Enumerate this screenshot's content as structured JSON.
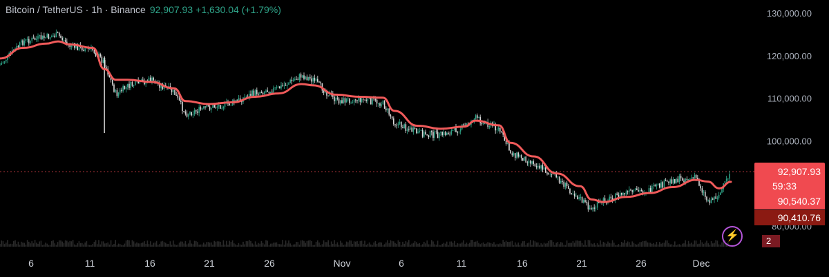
{
  "header": {
    "symbol": "Bitcoin / TetherUS · 1h · Binance",
    "last_price": "92,907.93",
    "change": "+1,630.04 (+1.79%)"
  },
  "price_tags": {
    "last_price": "92,907.93",
    "countdown": "59:33",
    "ma_value": "90,540.37",
    "ma_value_2": "90,410.76",
    "counter": "2"
  },
  "colors": {
    "background": "#000000",
    "moving_average": "#f05a5a",
    "candle_up": "#2fa58a",
    "candle_down": "#e0e0e0",
    "last_price_tag": "#f04a50",
    "ma2_tag": "#8b1a12",
    "bolt": "#b455d8"
  },
  "icons": {
    "bolt": "lightning-bolt-icon"
  },
  "chart_data": {
    "type": "line",
    "title": "",
    "xlabel": "",
    "ylabel": "",
    "x_tick_labels": [
      "6",
      "11",
      "16",
      "21",
      "26",
      "Nov",
      "6",
      "11",
      "16",
      "21",
      "26",
      "Dec"
    ],
    "y_tick_labels": [
      "130,000.00",
      "120,000.00",
      "110,000.00",
      "100,000.00",
      "80,000.00"
    ],
    "y_ticks": [
      130000,
      120000,
      110000,
      100000,
      80000
    ],
    "ylim": [
      78000,
      130000
    ],
    "grid": false,
    "current_price": 92907.93,
    "series": [
      {
        "style": "candles",
        "x": [
          "Oct 1",
          "Oct 3",
          "Oct 5",
          "Oct 6",
          "Oct 7",
          "Oct 9",
          "Oct 10",
          "Oct 11",
          "Oct 12",
          "Oct 14",
          "Oct 16",
          "Oct 17",
          "Oct 19",
          "Oct 21",
          "Oct 23",
          "Oct 25",
          "Oct 27",
          "Oct 28",
          "Oct 30",
          "Nov 1",
          "Nov 3",
          "Nov 4",
          "Nov 6",
          "Nov 8",
          "Nov 10",
          "Nov 11",
          "Nov 13",
          "Nov 14",
          "Nov 16",
          "Nov 18",
          "Nov 20",
          "Nov 21",
          "Nov 22",
          "Nov 24",
          "Nov 26",
          "Nov 28",
          "Nov 30",
          "Dec 1",
          "Dec 2",
          "Dec 3"
        ],
        "values": [
          118000,
          123500,
          124500,
          125000,
          122500,
          121500,
          118500,
          111000,
          113000,
          114500,
          111500,
          106500,
          108000,
          109000,
          111500,
          112500,
          115500,
          114500,
          109500,
          110000,
          109000,
          104500,
          102000,
          101500,
          103500,
          105500,
          103000,
          97500,
          95000,
          91500,
          86500,
          84000,
          86000,
          88000,
          88500,
          91000,
          91500,
          86000,
          87500,
          92908
        ]
      },
      {
        "style": "moving-average",
        "x": [
          "Oct 1",
          "Oct 3",
          "Oct 5",
          "Oct 6",
          "Oct 7",
          "Oct 9",
          "Oct 10",
          "Oct 11",
          "Oct 12",
          "Oct 14",
          "Oct 16",
          "Oct 17",
          "Oct 19",
          "Oct 21",
          "Oct 23",
          "Oct 25",
          "Oct 27",
          "Oct 28",
          "Oct 30",
          "Nov 1",
          "Nov 3",
          "Nov 4",
          "Nov 6",
          "Nov 8",
          "Nov 10",
          "Nov 11",
          "Nov 13",
          "Nov 14",
          "Nov 16",
          "Nov 18",
          "Nov 20",
          "Nov 21",
          "Nov 22",
          "Nov 24",
          "Nov 26",
          "Nov 28",
          "Nov 30",
          "Dec 1",
          "Dec 2",
          "Dec 3"
        ],
        "values": [
          119500,
          122000,
          123000,
          123500,
          122800,
          122000,
          117000,
          114500,
          114500,
          114000,
          112500,
          109500,
          108800,
          109200,
          110500,
          111300,
          113500,
          113200,
          111000,
          110500,
          110300,
          107200,
          103700,
          103000,
          103500,
          104900,
          103800,
          99700,
          96500,
          92500,
          89500,
          86400,
          85800,
          87000,
          87900,
          89300,
          91000,
          90600,
          89000,
          90540
        ]
      }
    ]
  }
}
